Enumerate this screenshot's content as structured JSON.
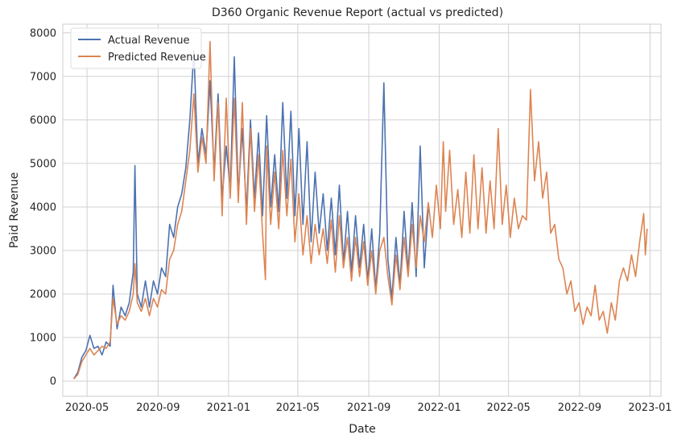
{
  "chart_data": {
    "type": "line",
    "title": "D360 Organic Revenue Report (actual vs predicted)",
    "xlabel": "Date",
    "ylabel": "Paid Revenue",
    "x_range": [
      "2020-03-20",
      "2023-01-20"
    ],
    "ylim": [
      -350,
      8200
    ],
    "x_ticks": [
      "2020-05",
      "2020-09",
      "2021-01",
      "2021-05",
      "2021-09",
      "2022-01",
      "2022-05",
      "2022-09",
      "2023-01"
    ],
    "y_ticks": [
      0,
      1000,
      2000,
      3000,
      4000,
      5000,
      6000,
      7000,
      8000
    ],
    "grid": true,
    "legend_position": "top-left",
    "colors": {
      "actual": "#4c72b0",
      "predicted": "#dd8452",
      "grid": "#d0d0d0",
      "axes_edge": "#cccccc"
    },
    "series": [
      {
        "name": "Actual Revenue",
        "key": "actual",
        "points": [
          [
            "2020-04-08",
            50
          ],
          [
            "2020-04-15",
            200
          ],
          [
            "2020-04-22",
            550
          ],
          [
            "2020-04-29",
            700
          ],
          [
            "2020-05-06",
            1050
          ],
          [
            "2020-05-13",
            750
          ],
          [
            "2020-05-20",
            800
          ],
          [
            "2020-05-27",
            600
          ],
          [
            "2020-06-03",
            900
          ],
          [
            "2020-06-10",
            800
          ],
          [
            "2020-06-15",
            2200
          ],
          [
            "2020-06-22",
            1200
          ],
          [
            "2020-06-29",
            1700
          ],
          [
            "2020-07-06",
            1500
          ],
          [
            "2020-07-13",
            1800
          ],
          [
            "2020-07-20",
            2500
          ],
          [
            "2020-07-23",
            4950
          ],
          [
            "2020-07-27",
            2000
          ],
          [
            "2020-08-03",
            1700
          ],
          [
            "2020-08-10",
            2300
          ],
          [
            "2020-08-17",
            1700
          ],
          [
            "2020-08-24",
            2300
          ],
          [
            "2020-08-31",
            2000
          ],
          [
            "2020-09-07",
            2600
          ],
          [
            "2020-09-14",
            2400
          ],
          [
            "2020-09-21",
            3600
          ],
          [
            "2020-09-28",
            3300
          ],
          [
            "2020-10-05",
            4000
          ],
          [
            "2020-10-12",
            4300
          ],
          [
            "2020-10-19",
            4900
          ],
          [
            "2020-10-26",
            6000
          ],
          [
            "2020-11-02",
            7600
          ],
          [
            "2020-11-09",
            5000
          ],
          [
            "2020-11-16",
            5800
          ],
          [
            "2020-11-23",
            5200
          ],
          [
            "2020-11-30",
            6900
          ],
          [
            "2020-12-07",
            4800
          ],
          [
            "2020-12-14",
            6600
          ],
          [
            "2020-12-21",
            4200
          ],
          [
            "2020-12-28",
            5400
          ],
          [
            "2021-01-04",
            4400
          ],
          [
            "2021-01-11",
            7450
          ],
          [
            "2021-01-18",
            4300
          ],
          [
            "2021-01-25",
            5800
          ],
          [
            "2021-02-01",
            3900
          ],
          [
            "2021-02-08",
            6000
          ],
          [
            "2021-02-15",
            4200
          ],
          [
            "2021-02-22",
            5700
          ],
          [
            "2021-03-01",
            3800
          ],
          [
            "2021-03-08",
            6100
          ],
          [
            "2021-03-15",
            4000
          ],
          [
            "2021-03-22",
            5200
          ],
          [
            "2021-03-29",
            3900
          ],
          [
            "2021-04-05",
            6400
          ],
          [
            "2021-04-12",
            4200
          ],
          [
            "2021-04-19",
            6200
          ],
          [
            "2021-04-26",
            3800
          ],
          [
            "2021-05-03",
            5800
          ],
          [
            "2021-05-10",
            3600
          ],
          [
            "2021-05-17",
            5500
          ],
          [
            "2021-05-24",
            3200
          ],
          [
            "2021-05-31",
            4800
          ],
          [
            "2021-06-07",
            3400
          ],
          [
            "2021-06-14",
            4300
          ],
          [
            "2021-06-21",
            3000
          ],
          [
            "2021-06-28",
            4200
          ],
          [
            "2021-07-05",
            2900
          ],
          [
            "2021-07-12",
            4500
          ],
          [
            "2021-07-19",
            2700
          ],
          [
            "2021-07-26",
            3900
          ],
          [
            "2021-08-02",
            2500
          ],
          [
            "2021-08-09",
            3800
          ],
          [
            "2021-08-16",
            2600
          ],
          [
            "2021-08-23",
            3600
          ],
          [
            "2021-08-30",
            2300
          ],
          [
            "2021-09-06",
            3500
          ],
          [
            "2021-09-13",
            2100
          ],
          [
            "2021-09-20",
            3400
          ],
          [
            "2021-09-27",
            6850
          ],
          [
            "2021-10-04",
            2800
          ],
          [
            "2021-10-11",
            1900
          ],
          [
            "2021-10-18",
            3300
          ],
          [
            "2021-10-25",
            2200
          ],
          [
            "2021-11-01",
            3900
          ],
          [
            "2021-11-08",
            2500
          ],
          [
            "2021-11-15",
            4100
          ],
          [
            "2021-11-22",
            2400
          ],
          [
            "2021-11-29",
            5400
          ],
          [
            "2021-12-06",
            2600
          ],
          [
            "2021-12-13",
            4000
          ]
        ]
      },
      {
        "name": "Predicted Revenue",
        "key": "predicted",
        "points": [
          [
            "2020-04-08",
            50
          ],
          [
            "2020-04-15",
            150
          ],
          [
            "2020-04-22",
            450
          ],
          [
            "2020-04-29",
            600
          ],
          [
            "2020-05-06",
            750
          ],
          [
            "2020-05-13",
            600
          ],
          [
            "2020-05-20",
            700
          ],
          [
            "2020-05-27",
            800
          ],
          [
            "2020-06-03",
            750
          ],
          [
            "2020-06-10",
            900
          ],
          [
            "2020-06-15",
            1900
          ],
          [
            "2020-06-22",
            1300
          ],
          [
            "2020-06-29",
            1500
          ],
          [
            "2020-07-06",
            1400
          ],
          [
            "2020-07-13",
            1600
          ],
          [
            "2020-07-20",
            2000
          ],
          [
            "2020-07-23",
            2700
          ],
          [
            "2020-07-27",
            1800
          ],
          [
            "2020-08-03",
            1600
          ],
          [
            "2020-08-10",
            1900
          ],
          [
            "2020-08-17",
            1500
          ],
          [
            "2020-08-24",
            1900
          ],
          [
            "2020-08-31",
            1700
          ],
          [
            "2020-09-07",
            2100
          ],
          [
            "2020-09-14",
            2000
          ],
          [
            "2020-09-21",
            2800
          ],
          [
            "2020-09-28",
            3000
          ],
          [
            "2020-10-05",
            3600
          ],
          [
            "2020-10-12",
            3900
          ],
          [
            "2020-10-19",
            4600
          ],
          [
            "2020-10-26",
            5300
          ],
          [
            "2020-11-02",
            6600
          ],
          [
            "2020-11-09",
            4800
          ],
          [
            "2020-11-16",
            5600
          ],
          [
            "2020-11-23",
            5000
          ],
          [
            "2020-11-30",
            7800
          ],
          [
            "2020-12-07",
            4600
          ],
          [
            "2020-12-14",
            6400
          ],
          [
            "2020-12-21",
            3800
          ],
          [
            "2020-12-28",
            6500
          ],
          [
            "2021-01-04",
            4200
          ],
          [
            "2021-01-11",
            6500
          ],
          [
            "2021-01-18",
            4100
          ],
          [
            "2021-01-25",
            6400
          ],
          [
            "2021-02-01",
            3600
          ],
          [
            "2021-02-08",
            5800
          ],
          [
            "2021-02-15",
            3900
          ],
          [
            "2021-02-22",
            5200
          ],
          [
            "2021-03-01",
            3400
          ],
          [
            "2021-03-06",
            2330
          ],
          [
            "2021-03-08",
            5400
          ],
          [
            "2021-03-15",
            3600
          ],
          [
            "2021-03-22",
            4800
          ],
          [
            "2021-03-29",
            3500
          ],
          [
            "2021-04-05",
            5300
          ],
          [
            "2021-04-12",
            3800
          ],
          [
            "2021-04-19",
            5100
          ],
          [
            "2021-04-26",
            3200
          ],
          [
            "2021-05-03",
            4300
          ],
          [
            "2021-05-10",
            2900
          ],
          [
            "2021-05-17",
            3800
          ],
          [
            "2021-05-24",
            2700
          ],
          [
            "2021-05-31",
            3600
          ],
          [
            "2021-06-07",
            2900
          ],
          [
            "2021-06-14",
            3500
          ],
          [
            "2021-06-21",
            2700
          ],
          [
            "2021-06-28",
            3700
          ],
          [
            "2021-07-05",
            2500
          ],
          [
            "2021-07-12",
            3800
          ],
          [
            "2021-07-19",
            2600
          ],
          [
            "2021-07-26",
            3300
          ],
          [
            "2021-08-02",
            2300
          ],
          [
            "2021-08-09",
            3300
          ],
          [
            "2021-08-16",
            2400
          ],
          [
            "2021-08-23",
            3200
          ],
          [
            "2021-08-30",
            2200
          ],
          [
            "2021-09-06",
            3000
          ],
          [
            "2021-09-13",
            2000
          ],
          [
            "2021-09-20",
            3000
          ],
          [
            "2021-09-27",
            3300
          ],
          [
            "2021-10-04",
            2400
          ],
          [
            "2021-10-11",
            1750
          ],
          [
            "2021-10-18",
            2900
          ],
          [
            "2021-10-25",
            2100
          ],
          [
            "2021-11-01",
            3300
          ],
          [
            "2021-11-08",
            2400
          ],
          [
            "2021-11-15",
            3600
          ],
          [
            "2021-11-22",
            2600
          ],
          [
            "2021-11-29",
            3800
          ],
          [
            "2021-12-06",
            3200
          ],
          [
            "2021-12-13",
            4100
          ],
          [
            "2021-12-20",
            3300
          ],
          [
            "2021-12-27",
            4500
          ],
          [
            "2022-01-03",
            3500
          ],
          [
            "2022-01-08",
            5500
          ],
          [
            "2022-01-12",
            3900
          ],
          [
            "2022-01-19",
            5300
          ],
          [
            "2022-01-26",
            3600
          ],
          [
            "2022-02-02",
            4400
          ],
          [
            "2022-02-09",
            3300
          ],
          [
            "2022-02-16",
            4800
          ],
          [
            "2022-02-23",
            3400
          ],
          [
            "2022-03-02",
            5200
          ],
          [
            "2022-03-09",
            3500
          ],
          [
            "2022-03-16",
            4900
          ],
          [
            "2022-03-23",
            3400
          ],
          [
            "2022-03-30",
            4600
          ],
          [
            "2022-04-06",
            3500
          ],
          [
            "2022-04-13",
            5800
          ],
          [
            "2022-04-20",
            3600
          ],
          [
            "2022-04-27",
            4500
          ],
          [
            "2022-05-04",
            3300
          ],
          [
            "2022-05-11",
            4200
          ],
          [
            "2022-05-18",
            3500
          ],
          [
            "2022-05-25",
            3800
          ],
          [
            "2022-06-01",
            3700
          ],
          [
            "2022-06-08",
            6700
          ],
          [
            "2022-06-15",
            4600
          ],
          [
            "2022-06-22",
            5500
          ],
          [
            "2022-06-29",
            4200
          ],
          [
            "2022-07-06",
            4800
          ],
          [
            "2022-07-13",
            3400
          ],
          [
            "2022-07-20",
            3600
          ],
          [
            "2022-07-27",
            2800
          ],
          [
            "2022-08-03",
            2600
          ],
          [
            "2022-08-10",
            2000
          ],
          [
            "2022-08-17",
            2300
          ],
          [
            "2022-08-24",
            1600
          ],
          [
            "2022-08-31",
            1800
          ],
          [
            "2022-09-07",
            1300
          ],
          [
            "2022-09-14",
            1700
          ],
          [
            "2022-09-21",
            1500
          ],
          [
            "2022-09-28",
            2200
          ],
          [
            "2022-10-05",
            1400
          ],
          [
            "2022-10-12",
            1600
          ],
          [
            "2022-10-19",
            1100
          ],
          [
            "2022-10-26",
            1800
          ],
          [
            "2022-11-02",
            1400
          ],
          [
            "2022-11-09",
            2300
          ],
          [
            "2022-11-16",
            2600
          ],
          [
            "2022-11-23",
            2300
          ],
          [
            "2022-11-30",
            2900
          ],
          [
            "2022-12-07",
            2400
          ],
          [
            "2022-12-14",
            3200
          ],
          [
            "2022-12-21",
            3850
          ],
          [
            "2022-12-24",
            2900
          ],
          [
            "2022-12-27",
            3500
          ]
        ]
      }
    ]
  }
}
